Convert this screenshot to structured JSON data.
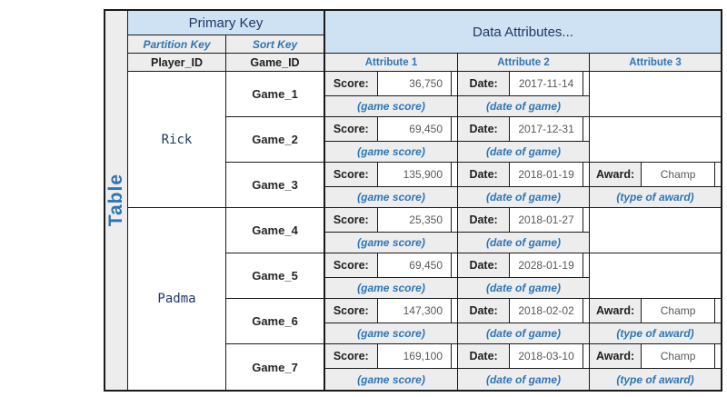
{
  "table_label": "Table",
  "headers": {
    "primary_key": "Primary Key",
    "data_attributes": "Data Attributes...",
    "partition_key": "Partition Key",
    "sort_key": "Sort Key",
    "player_id_col": "Player_ID",
    "game_id_col": "Game_ID",
    "attributes": [
      "Attribute 1",
      "Attribute 2",
      "Attribute 3"
    ]
  },
  "field_labels": {
    "score": "Score:",
    "date": "Date:",
    "award": "Award:"
  },
  "field_captions": {
    "score": "(game score)",
    "date": "(date of game)",
    "award": "(type of award)"
  },
  "players": [
    {
      "player_id": "Rick",
      "games": [
        {
          "game_id": "Game_1",
          "score": "36,750",
          "date": "2017-11-14"
        },
        {
          "game_id": "Game_2",
          "score": "69,450",
          "date": "2017-12-31"
        },
        {
          "game_id": "Game_3",
          "score": "135,900",
          "date": "2018-01-19",
          "award": "Champ"
        }
      ]
    },
    {
      "player_id": "Padma",
      "games": [
        {
          "game_id": "Game_4",
          "score": "25,350",
          "date": "2018-01-27"
        },
        {
          "game_id": "Game_5",
          "score": "69,450",
          "date": "2028-01-19"
        },
        {
          "game_id": "Game_6",
          "score": "147,300",
          "date": "2018-02-02",
          "award": "Champ"
        },
        {
          "game_id": "Game_7",
          "score": "169,100",
          "date": "2018-03-10",
          "award": "Champ"
        }
      ]
    }
  ],
  "colors": {
    "header_blue_bg": "#cfe2f3",
    "header_navy_text": "#1f3864",
    "accent_blue": "#2e75b6",
    "cell_gray": "#ededed",
    "border": "#1a1a1a"
  }
}
